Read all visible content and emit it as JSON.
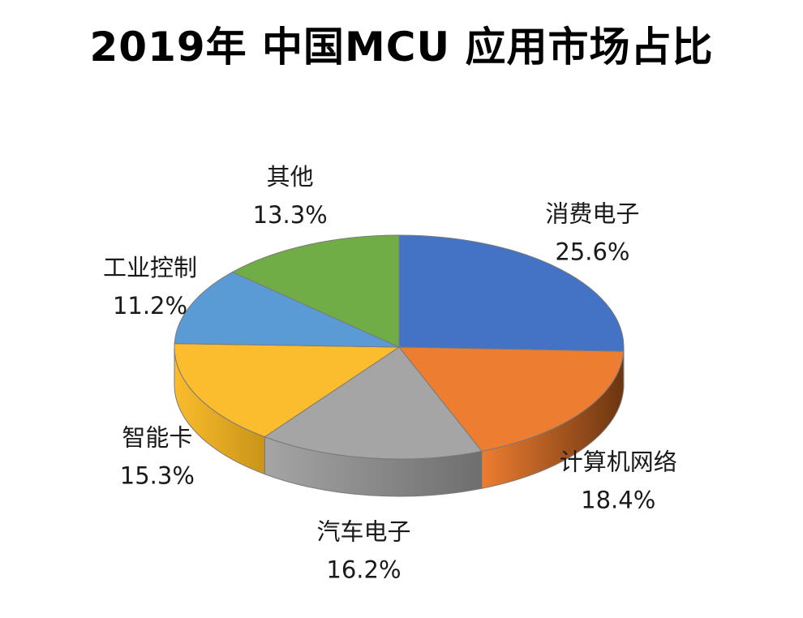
{
  "chart_data": {
    "type": "pie",
    "title": "2019年 中国MCU 应用市场占比",
    "slices": [
      {
        "label": "消费电子",
        "value": 25.6,
        "value_label": "25.6%",
        "color": "#4472C4",
        "side_color": "#2F5597"
      },
      {
        "label": "计算机网络",
        "value": 18.4,
        "value_label": "18.4%",
        "color": "#ED7D31",
        "side_color": "#6B3510"
      },
      {
        "label": "汽车电子",
        "value": 16.2,
        "value_label": "16.2%",
        "color": "#A5A5A5",
        "side_color": "#6E6E6E"
      },
      {
        "label": "智能卡",
        "value": 15.3,
        "value_label": "15.3%",
        "color": "#FBBC2D",
        "side_color": "#C99419"
      },
      {
        "label": "工业控制",
        "value": 11.2,
        "value_label": "11.2%",
        "color": "#5B9BD5",
        "side_color": "#3A6E9E"
      },
      {
        "label": "其他",
        "value": 13.3,
        "value_label": "13.3%",
        "color": "#70AD47",
        "side_color": "#4E7F30"
      }
    ]
  }
}
